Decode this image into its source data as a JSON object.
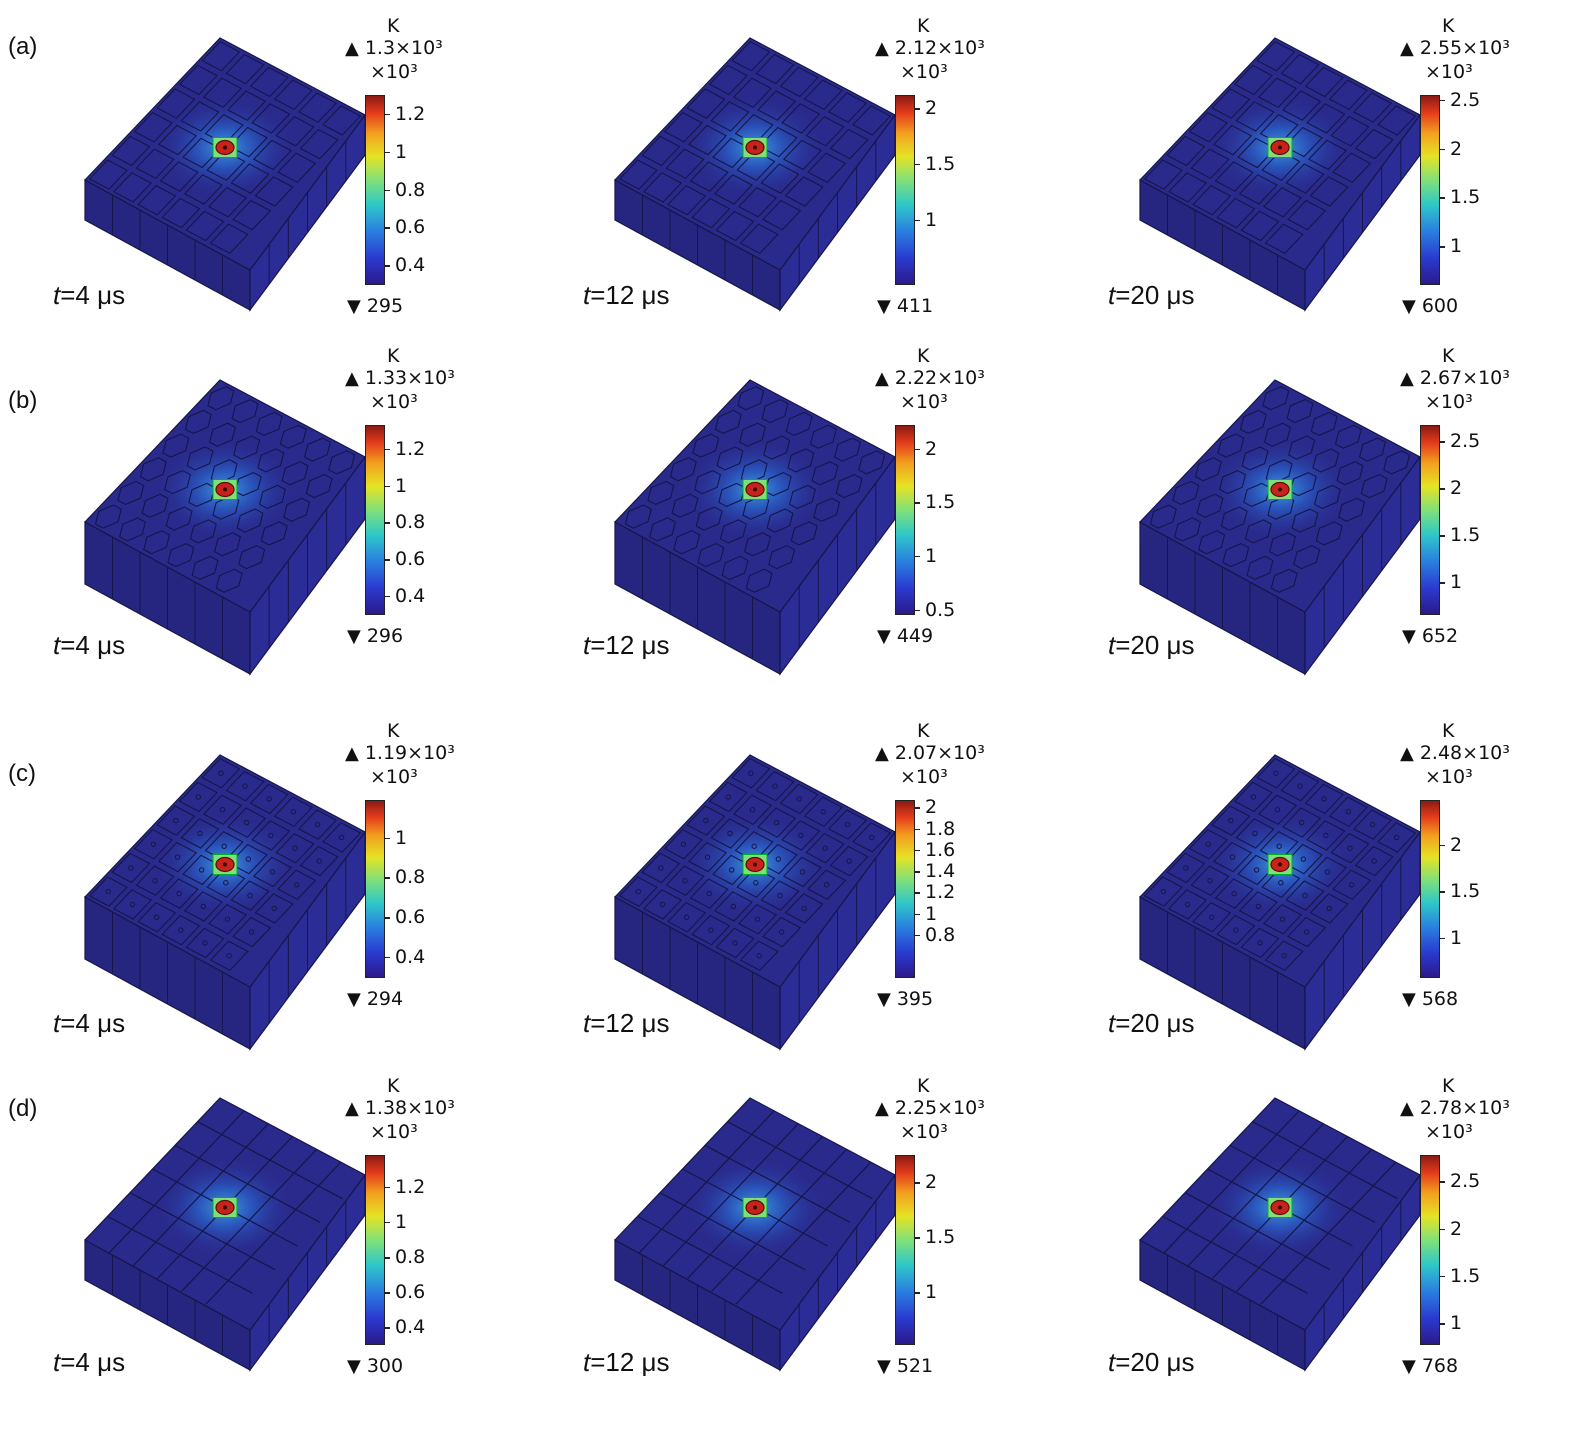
{
  "figure": {
    "rows": [
      {
        "label": "(a)",
        "pattern": "square",
        "panels": [
          {
            "time": "=4 μs",
            "unit": "K",
            "max": "1.3×10³",
            "scale": "×10³",
            "min": "295",
            "ticks": [
              "1.2",
              "1",
              "0.8",
              "0.6",
              "0.4"
            ],
            "tick_values": [
              1.2,
              1.0,
              0.8,
              0.6,
              0.4
            ],
            "range": [
              0.295,
              1.3
            ]
          },
          {
            "time": "=12 μs",
            "unit": "K",
            "max": "2.12×10³",
            "scale": "×10³",
            "min": "411",
            "ticks": [
              "2",
              "1.5",
              "1"
            ],
            "tick_values": [
              2.0,
              1.5,
              1.0
            ],
            "range": [
              0.411,
              2.12
            ]
          },
          {
            "time": "=20 μs",
            "unit": "K",
            "max": "2.55×10³",
            "scale": "×10³",
            "min": "600",
            "ticks": [
              "2.5",
              "2",
              "1.5",
              "1"
            ],
            "tick_values": [
              2.5,
              2.0,
              1.5,
              1.0
            ],
            "range": [
              0.6,
              2.55
            ]
          }
        ]
      },
      {
        "label": "(b)",
        "pattern": "hex",
        "panels": [
          {
            "time": "=4 μs",
            "unit": "K",
            "max": "1.33×10³",
            "scale": "×10³",
            "min": "296",
            "ticks": [
              "1.2",
              "1",
              "0.8",
              "0.6",
              "0.4"
            ],
            "tick_values": [
              1.2,
              1.0,
              0.8,
              0.6,
              0.4
            ],
            "range": [
              0.296,
              1.33
            ]
          },
          {
            "time": "=12 μs",
            "unit": "K",
            "max": "2.22×10³",
            "scale": "×10³",
            "min": "449",
            "ticks": [
              "2",
              "1.5",
              "1",
              "0.5"
            ],
            "tick_values": [
              2.0,
              1.5,
              1.0,
              0.5
            ],
            "range": [
              0.449,
              2.22
            ]
          },
          {
            "time": "=20 μs",
            "unit": "K",
            "max": "2.67×10³",
            "scale": "×10³",
            "min": "652",
            "ticks": [
              "2.5",
              "2",
              "1.5",
              "1"
            ],
            "tick_values": [
              2.5,
              2.0,
              1.5,
              1.0
            ],
            "range": [
              0.652,
              2.67
            ]
          }
        ]
      },
      {
        "label": "(c)",
        "pattern": "dots",
        "panels": [
          {
            "time": "=4 μs",
            "unit": "K",
            "max": "1.19×10³",
            "scale": "×10³",
            "min": "294",
            "ticks": [
              "1",
              "0.8",
              "0.6",
              "0.4"
            ],
            "tick_values": [
              1.0,
              0.8,
              0.6,
              0.4
            ],
            "range": [
              0.294,
              1.19
            ]
          },
          {
            "time": "=12 μs",
            "unit": "K",
            "max": "2.07×10³",
            "scale": "×10³",
            "min": "395",
            "ticks": [
              "2",
              "1.8",
              "1.6",
              "1.4",
              "1.2",
              "1",
              "0.8"
            ],
            "tick_values": [
              2.0,
              1.8,
              1.6,
              1.4,
              1.2,
              1.0,
              0.8
            ],
            "range": [
              0.395,
              2.07
            ]
          },
          {
            "time": "=20 μs",
            "unit": "K",
            "max": "2.48×10³",
            "scale": "×10³",
            "min": "568",
            "ticks": [
              "2",
              "1.5",
              "1"
            ],
            "tick_values": [
              2.0,
              1.5,
              1.0
            ],
            "range": [
              0.568,
              2.48
            ]
          }
        ]
      },
      {
        "label": "(d)",
        "pattern": "plain",
        "panels": [
          {
            "time": "=4 μs",
            "unit": "K",
            "max": "1.38×10³",
            "scale": "×10³",
            "min": "300",
            "ticks": [
              "1.2",
              "1",
              "0.8",
              "0.6",
              "0.4"
            ],
            "tick_values": [
              1.2,
              1.0,
              0.8,
              0.6,
              0.4
            ],
            "range": [
              0.3,
              1.38
            ]
          },
          {
            "time": "=12 μs",
            "unit": "K",
            "max": "2.25×10³",
            "scale": "×10³",
            "min": "521",
            "ticks": [
              "2",
              "1.5",
              "1"
            ],
            "tick_values": [
              2.0,
              1.5,
              1.0
            ],
            "range": [
              0.521,
              2.25
            ]
          },
          {
            "time": "=20 μs",
            "unit": "K",
            "max": "2.78×10³",
            "scale": "×10³",
            "min": "768",
            "ticks": [
              "2.5",
              "2",
              "1.5",
              "1"
            ],
            "tick_values": [
              2.5,
              2.0,
              1.5,
              1.0
            ],
            "range": [
              0.768,
              2.78
            ]
          }
        ]
      }
    ],
    "time_symbol": "t",
    "colors": {
      "block_base": "#2a2a8c",
      "block_side": "#262680",
      "grid_line": "#16164a",
      "hot_core": "#c8231a",
      "warm": "#2ec7c8"
    }
  }
}
